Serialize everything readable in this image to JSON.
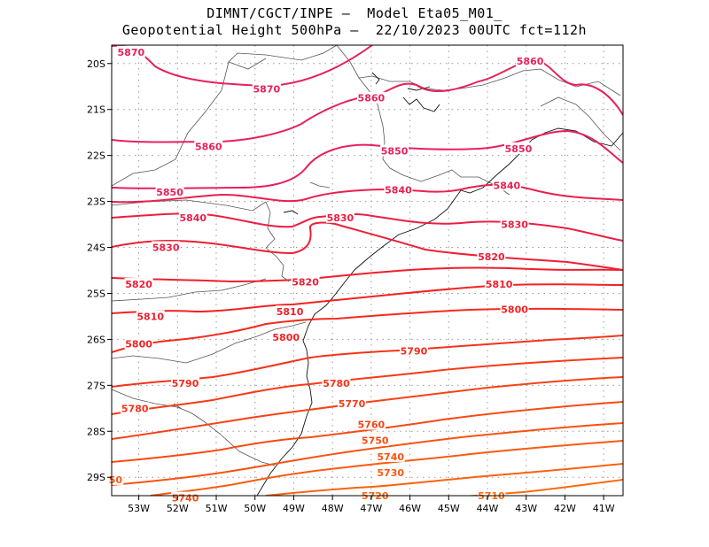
{
  "header": {
    "line1": "DIMNT/CGCT/INPE –  Model Eta05_M01_",
    "line2": "Geopotential Height 500hPa –  22/10/2023 00UTC fct=112h"
  },
  "axes": {
    "lat_labels": [
      "20S",
      "21S",
      "22S",
      "23S",
      "24S",
      "25S",
      "26S",
      "27S",
      "28S",
      "29S"
    ],
    "lon_labels": [
      "53W",
      "52W",
      "51W",
      "50W",
      "49W",
      "48W",
      "47W",
      "46W",
      "45W",
      "44W",
      "43W",
      "42W",
      "41W"
    ],
    "lat_range": [
      -29.4,
      -19.6
    ],
    "lon_range": [
      -53.7,
      -40.5
    ],
    "grid": "dotted"
  },
  "contour_labels": [
    {
      "text": "5870",
      "lon": -53.2,
      "lat": -19.75,
      "color": "#e8205a"
    },
    {
      "text": "5870",
      "lon": -49.7,
      "lat": -20.55,
      "color": "#e8205a"
    },
    {
      "text": "5860",
      "lon": -42.9,
      "lat": -19.95,
      "color": "#e8205a"
    },
    {
      "text": "5860",
      "lon": -47.0,
      "lat": -20.75,
      "color": "#e8205a"
    },
    {
      "text": "5860",
      "lon": -51.2,
      "lat": -21.8,
      "color": "#e8205a"
    },
    {
      "text": "5850",
      "lon": -46.4,
      "lat": -21.9,
      "color": "#e8205a"
    },
    {
      "text": "5850",
      "lon": -43.2,
      "lat": -21.85,
      "color": "#e8205a"
    },
    {
      "text": "5850",
      "lon": -52.2,
      "lat": -22.8,
      "color": "#e8205a"
    },
    {
      "text": "5840",
      "lon": -46.3,
      "lat": -22.75,
      "color": "#ea1f4e"
    },
    {
      "text": "5840",
      "lon": -43.5,
      "lat": -22.65,
      "color": "#ea1f4e"
    },
    {
      "text": "5840",
      "lon": -51.6,
      "lat": -23.35,
      "color": "#ea1f4e"
    },
    {
      "text": "5830",
      "lon": -47.8,
      "lat": -23.35,
      "color": "#ec1e42"
    },
    {
      "text": "5830",
      "lon": -43.3,
      "lat": -23.5,
      "color": "#ec1e42"
    },
    {
      "text": "5830",
      "lon": -52.3,
      "lat": -24.0,
      "color": "#ec1e42"
    },
    {
      "text": "5820",
      "lon": -43.9,
      "lat": -24.2,
      "color": "#ee1e36"
    },
    {
      "text": "5820",
      "lon": -48.7,
      "lat": -24.75,
      "color": "#ee1e36"
    },
    {
      "text": "5820",
      "lon": -53.0,
      "lat": -24.8,
      "color": "#ee1e36"
    },
    {
      "text": "5810",
      "lon": -43.7,
      "lat": -24.8,
      "color": "#f01e2c"
    },
    {
      "text": "5810",
      "lon": -49.1,
      "lat": -25.4,
      "color": "#f01e2c"
    },
    {
      "text": "5810",
      "lon": -52.7,
      "lat": -25.5,
      "color": "#f01e2c"
    },
    {
      "text": "5800",
      "lon": -43.3,
      "lat": -25.35,
      "color": "#f22222"
    },
    {
      "text": "5800",
      "lon": -49.2,
      "lat": -25.95,
      "color": "#f22222"
    },
    {
      "text": "5800",
      "lon": -53.0,
      "lat": -26.1,
      "color": "#f22222"
    },
    {
      "text": "5790",
      "lon": -45.9,
      "lat": -26.25,
      "color": "#f42a1c"
    },
    {
      "text": "5790",
      "lon": -51.8,
      "lat": -26.95,
      "color": "#f42a1c"
    },
    {
      "text": "5780",
      "lon": -47.9,
      "lat": -26.95,
      "color": "#f5321a"
    },
    {
      "text": "5780",
      "lon": -53.1,
      "lat": -27.5,
      "color": "#f5321a"
    },
    {
      "text": "5770",
      "lon": -47.5,
      "lat": -27.4,
      "color": "#f63a18"
    },
    {
      "text": "5760",
      "lon": -47.0,
      "lat": -27.85,
      "color": "#f74216"
    },
    {
      "text": "5750",
      "lon": -46.9,
      "lat": -28.2,
      "color": "#f84a14"
    },
    {
      "text": "5740",
      "lon": -46.5,
      "lat": -28.55,
      "color": "#f95212"
    },
    {
      "text": "5740",
      "lon": -51.8,
      "lat": -29.45,
      "color": "#f95212"
    },
    {
      "text": "5730",
      "lon": -46.5,
      "lat": -28.9,
      "color": "#fa5a10"
    },
    {
      "text": "5720",
      "lon": -46.9,
      "lat": -29.4,
      "color": "#fb620e"
    },
    {
      "text": "5710",
      "lon": -43.9,
      "lat": -29.4,
      "color": "#fc6a0c"
    },
    {
      "text": "50",
      "lon": -53.6,
      "lat": -29.05,
      "color": "#fa5a10"
    }
  ]
}
